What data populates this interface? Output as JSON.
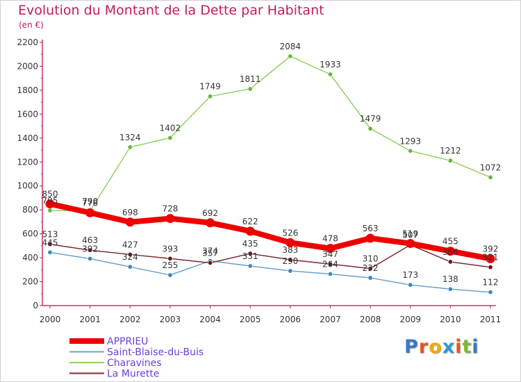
{
  "title": "Evolution du Montant de la Dette par Habitant",
  "subtitle": "(en €)",
  "logo": {
    "text": "Proxiti",
    "letter_colors": [
      "#3a78c3",
      "#e8541e",
      "#f2a900",
      "#2c9ad6",
      "#e8541e",
      "#7dbb2f",
      "#3a78c3"
    ]
  },
  "chart_data": {
    "type": "line",
    "title": "Evolution du Montant de la Dette par Habitant",
    "subtitle": "(en €)",
    "x": [
      "2000",
      "2001",
      "2002",
      "2003",
      "2004",
      "2005",
      "2006",
      "2007",
      "2008",
      "2009",
      "2010",
      "2011"
    ],
    "ylim": [
      0,
      2200
    ],
    "yticks": [
      0,
      200,
      400,
      600,
      800,
      1000,
      1200,
      1400,
      1600,
      1800,
      2000,
      2200
    ],
    "grid": false,
    "legend_position": "bottom-left",
    "series": [
      {
        "name": "Charavines",
        "color": "#8fd35c",
        "marker": "#6ab535",
        "emphasis": false,
        "values": [
          795,
          790,
          1324,
          1402,
          1749,
          1811,
          2084,
          1933,
          1479,
          1293,
          1212,
          1072
        ]
      },
      {
        "name": "Saint-Blaise-du-Buis",
        "color": "#6aa0cc",
        "marker": "#3b86c7",
        "emphasis": false,
        "values": [
          445,
          392,
          324,
          255,
          374,
          331,
          290,
          264,
          232,
          173,
          138,
          112
        ]
      },
      {
        "name": "La Murette",
        "color": "#7a2a2a",
        "marker": "#6b1a1a",
        "emphasis": false,
        "values": [
          513,
          463,
          427,
          393,
          357,
          435,
          383,
          347,
          310,
          507,
          366,
          321
        ]
      },
      {
        "name": "APPRIEU",
        "color": "#ee0000",
        "marker": "#ee0000",
        "emphasis": true,
        "values": [
          850,
          776,
          698,
          728,
          692,
          622,
          526,
          478,
          563,
          519,
          455,
          392
        ]
      }
    ],
    "legend_order": [
      "APPRIEU",
      "Saint-Blaise-du-Buis",
      "Charavines",
      "La Murette"
    ]
  }
}
